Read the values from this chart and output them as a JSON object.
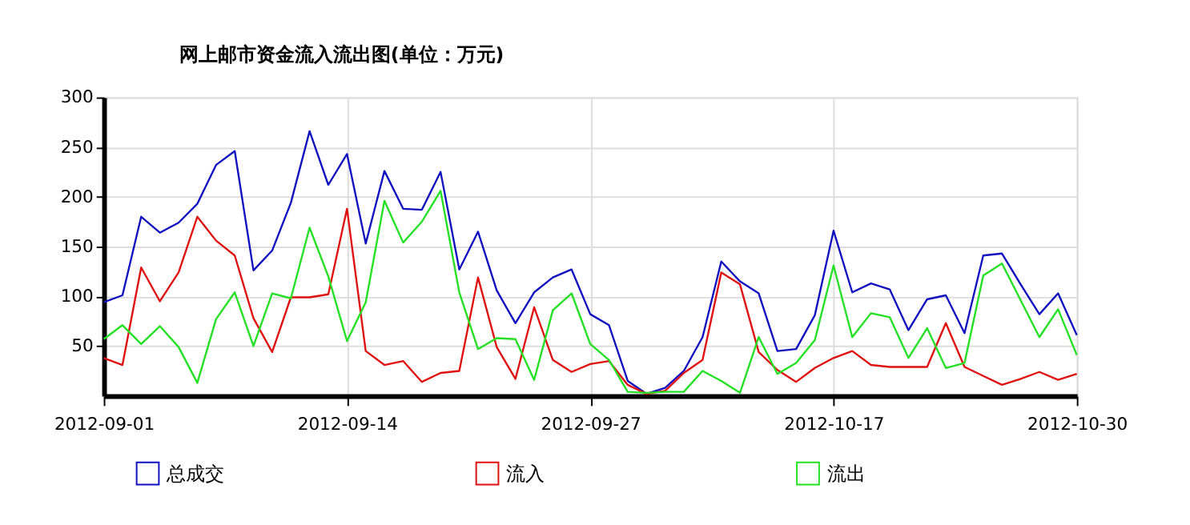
{
  "chart_data": {
    "type": "line",
    "title": "网上邮市资金流入流出图(单位：万元)",
    "categories": [
      "2012-09-01",
      null,
      null,
      null,
      null,
      null,
      null,
      null,
      null,
      null,
      null,
      null,
      null,
      "2012-09-14",
      null,
      null,
      null,
      null,
      null,
      null,
      null,
      null,
      null,
      null,
      null,
      null,
      "2012-09-27",
      null,
      null,
      null,
      null,
      null,
      null,
      null,
      null,
      null,
      null,
      null,
      null,
      "2012-10-17",
      null,
      null,
      null,
      null,
      null,
      null,
      null,
      null,
      null,
      null,
      null,
      null,
      "2012-10-30"
    ],
    "series": [
      {
        "name": "总成交",
        "color": "#1010c0",
        "values": [
          94,
          101,
          180,
          164,
          174,
          193,
          232,
          246,
          126,
          146,
          194,
          266,
          212,
          243,
          153,
          226,
          188,
          187,
          225,
          127,
          165,
          106,
          73,
          104,
          119,
          127,
          82,
          71,
          15,
          2,
          8,
          25,
          59,
          135,
          115,
          103,
          45,
          47,
          81,
          166,
          104,
          113,
          107,
          66,
          97,
          101,
          63,
          141,
          143,
          112,
          82,
          103,
          61
        ]
      },
      {
        "name": "流入",
        "color": "#e01010",
        "values": [
          38,
          31,
          129,
          95,
          124,
          180,
          156,
          141,
          78,
          44,
          99,
          99,
          102,
          188,
          45,
          31,
          35,
          14,
          23,
          25,
          119,
          49,
          17,
          89,
          36,
          24,
          32,
          35,
          11,
          2,
          5,
          23,
          36,
          124,
          112,
          44,
          26,
          14,
          28,
          38,
          45,
          31,
          29,
          29,
          29,
          73,
          29,
          20,
          11,
          17,
          24,
          16,
          22
        ]
      },
      {
        "name": "流出",
        "color": "#22e022",
        "values": [
          57,
          71,
          52,
          70,
          49,
          13,
          77,
          104,
          50,
          103,
          98,
          169,
          120,
          55,
          94,
          196,
          154,
          175,
          206,
          104,
          47,
          58,
          57,
          16,
          86,
          103,
          52,
          36,
          4,
          3,
          4,
          4,
          25,
          15,
          3,
          59,
          22,
          33,
          56,
          131,
          59,
          83,
          79,
          38,
          68,
          28,
          33,
          121,
          133,
          96,
          59,
          87,
          41
        ]
      }
    ],
    "ylim": [
      0,
      300
    ],
    "yticks": [
      50,
      100,
      150,
      200,
      250,
      300
    ],
    "grid": true,
    "legend": "bottom",
    "marker": "none",
    "line_style": "solid"
  }
}
